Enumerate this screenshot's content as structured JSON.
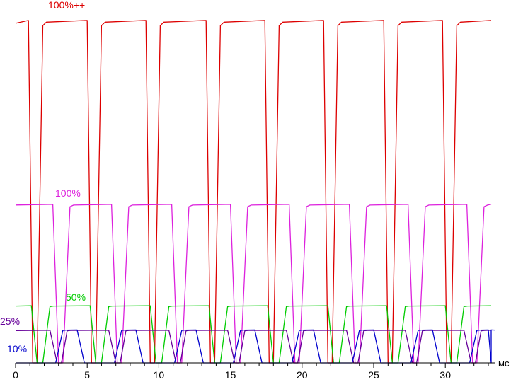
{
  "chart_data": {
    "type": "line",
    "xlabel": "мс",
    "xlim": [
      0,
      33.2
    ],
    "ylim": [
      0,
      100
    ],
    "x_ticks": [
      0,
      5,
      10,
      15,
      20,
      25,
      30
    ],
    "x_tick_labels": [
      "0",
      "5",
      "10",
      "15",
      "20",
      "25",
      "30"
    ],
    "grid": false,
    "period_ms": 4.15,
    "series": [
      {
        "name": "100%++",
        "color": "#dd0000",
        "low": 0,
        "high": 97.6,
        "start_high": 96.8,
        "pulses": [
          {
            "fall_start": 0.9,
            "fall_end": 1.2,
            "rise_start": 1.5,
            "rise_end": 1.9
          },
          {
            "fall_start": 5.0,
            "fall_end": 5.3,
            "rise_start": 5.6,
            "rise_end": 6.0
          },
          {
            "fall_start": 9.1,
            "fall_end": 9.4,
            "rise_start": 9.7,
            "rise_end": 10.1
          },
          {
            "fall_start": 13.3,
            "fall_end": 13.6,
            "rise_start": 13.9,
            "rise_end": 14.3
          },
          {
            "fall_start": 17.4,
            "fall_end": 17.7,
            "rise_start": 18.0,
            "rise_end": 18.4
          },
          {
            "fall_start": 21.5,
            "fall_end": 21.8,
            "rise_start": 22.1,
            "rise_end": 22.5
          },
          {
            "fall_start": 25.7,
            "fall_end": 26.0,
            "rise_start": 26.3,
            "rise_end": 26.7
          },
          {
            "fall_start": 29.8,
            "fall_end": 30.1,
            "rise_start": 30.4,
            "rise_end": 30.8
          }
        ]
      },
      {
        "name": "100%",
        "color": "#dd22dd",
        "low": 0,
        "high": 45.2,
        "start_high": 45.0,
        "pulses": [
          {
            "fall_start": 2.6,
            "fall_end": 3.0,
            "rise_start": 3.3,
            "rise_end": 3.8
          },
          {
            "fall_start": 6.7,
            "fall_end": 7.1,
            "rise_start": 7.4,
            "rise_end": 7.9
          },
          {
            "fall_start": 10.9,
            "fall_end": 11.3,
            "rise_start": 11.6,
            "rise_end": 12.1
          },
          {
            "fall_start": 15.0,
            "fall_end": 15.4,
            "rise_start": 15.7,
            "rise_end": 16.2
          },
          {
            "fall_start": 19.1,
            "fall_end": 19.5,
            "rise_start": 19.8,
            "rise_end": 20.3
          },
          {
            "fall_start": 23.3,
            "fall_end": 23.7,
            "rise_start": 24.0,
            "rise_end": 24.5
          },
          {
            "fall_start": 27.4,
            "fall_end": 27.8,
            "rise_start": 28.1,
            "rise_end": 28.6
          },
          {
            "fall_start": 31.5,
            "fall_end": 31.9,
            "rise_start": 32.2,
            "rise_end": 32.7
          }
        ]
      },
      {
        "name": "50%",
        "color": "#00cc00",
        "low": 0,
        "high": 16.3,
        "start_high": 16.2,
        "pulses": [
          {
            "fall_start": 1.1,
            "fall_end": 1.5,
            "rise_start": 1.9,
            "rise_end": 2.4
          },
          {
            "fall_start": 5.2,
            "fall_end": 5.6,
            "rise_start": 6.0,
            "rise_end": 6.5
          },
          {
            "fall_start": 9.4,
            "fall_end": 9.8,
            "rise_start": 10.2,
            "rise_end": 10.7
          },
          {
            "fall_start": 13.5,
            "fall_end": 13.9,
            "rise_start": 14.3,
            "rise_end": 14.8
          },
          {
            "fall_start": 17.6,
            "fall_end": 18.0,
            "rise_start": 18.4,
            "rise_end": 18.9
          },
          {
            "fall_start": 21.8,
            "fall_end": 22.2,
            "rise_start": 22.6,
            "rise_end": 23.1
          },
          {
            "fall_start": 25.9,
            "fall_end": 26.3,
            "rise_start": 26.7,
            "rise_end": 27.2
          },
          {
            "fall_start": 30.0,
            "fall_end": 30.4,
            "rise_start": 30.8,
            "rise_end": 31.3
          }
        ]
      },
      {
        "name": "25%",
        "color": "#660099",
        "low": 0,
        "high": 9.3,
        "start_high": 9.2,
        "pulses": [
          {
            "fall_start": 2.4,
            "fall_end": 2.9,
            "rise_start": 3.2,
            "rise_end": 3.6
          },
          {
            "fall_start": 6.5,
            "fall_end": 7.0,
            "rise_start": 7.3,
            "rise_end": 7.7
          },
          {
            "fall_start": 10.7,
            "fall_end": 11.2,
            "rise_start": 11.5,
            "rise_end": 11.9
          },
          {
            "fall_start": 14.8,
            "fall_end": 15.3,
            "rise_start": 15.6,
            "rise_end": 16.0
          },
          {
            "fall_start": 18.9,
            "fall_end": 19.4,
            "rise_start": 19.7,
            "rise_end": 20.1
          },
          {
            "fall_start": 23.1,
            "fall_end": 23.6,
            "rise_start": 23.9,
            "rise_end": 24.3
          },
          {
            "fall_start": 27.2,
            "fall_end": 27.7,
            "rise_start": 28.0,
            "rise_end": 28.4
          },
          {
            "fall_start": 31.3,
            "fall_end": 31.8,
            "rise_start": 32.1,
            "rise_end": 32.5
          }
        ]
      },
      {
        "name": "10%",
        "color": "#0000cc",
        "low": 0,
        "high": 9.4,
        "start_high": 0,
        "pulses": [
          {
            "fall_start": 0.0,
            "fall_end": 0.0,
            "rise_start": 2.8,
            "rise_end": 3.3
          },
          {
            "fall_start": 4.3,
            "fall_end": 4.8,
            "rise_start": 6.9,
            "rise_end": 7.4
          },
          {
            "fall_start": 8.4,
            "fall_end": 8.9,
            "rise_start": 11.1,
            "rise_end": 11.6
          },
          {
            "fall_start": 12.6,
            "fall_end": 13.1,
            "rise_start": 15.2,
            "rise_end": 15.7
          },
          {
            "fall_start": 16.7,
            "fall_end": 17.2,
            "rise_start": 19.3,
            "rise_end": 19.8
          },
          {
            "fall_start": 20.8,
            "fall_end": 21.3,
            "rise_start": 23.5,
            "rise_end": 24.0
          },
          {
            "fall_start": 25.0,
            "fall_end": 25.5,
            "rise_start": 27.6,
            "rise_end": 28.1
          },
          {
            "fall_start": 29.1,
            "fall_end": 29.6,
            "rise_start": 31.7,
            "rise_end": 32.2
          },
          {
            "fall_start": 33.0,
            "fall_end": 33.2,
            "rise_start": 33.2,
            "rise_end": 33.2
          }
        ]
      }
    ]
  }
}
